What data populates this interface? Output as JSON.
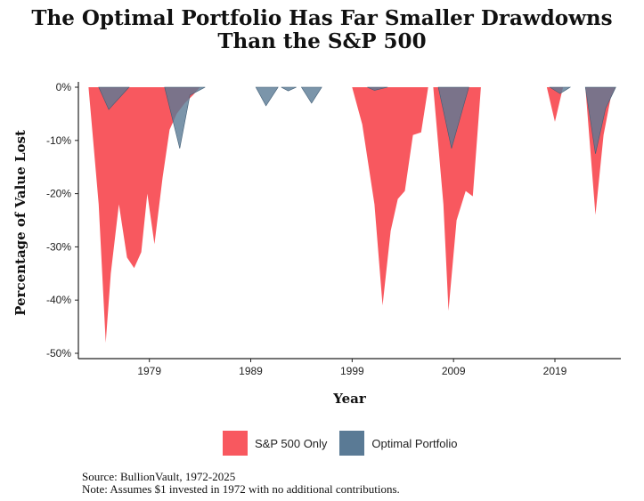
{
  "chart_data": {
    "type": "area",
    "title": "The Optimal Portfolio Has Far Smaller Drawdowns",
    "subtitle": "Than the S&P 500",
    "xlabel": "Year",
    "ylabel": "Percentage of Value Lost",
    "xlim": [
      1972,
      2025.5
    ],
    "ylim": [
      -51,
      0
    ],
    "x_ticks": [
      1979,
      1989,
      1999,
      2009,
      2019
    ],
    "y_ticks": [
      0,
      -10,
      -20,
      -30,
      -40,
      -50
    ],
    "y_tick_labels": [
      "0%",
      "-10%",
      "-20%",
      "-30%",
      "-40%",
      "-50%"
    ],
    "grid": false,
    "legend_position": "bottom",
    "colors": {
      "sp500": "#f8585f",
      "optimal": "#5a7a95",
      "overlap": "#5b4a62"
    },
    "series": [
      {
        "name": "S&P 500 Only",
        "x": [
          1973.0,
          1974.0,
          1974.7,
          1975.2,
          1976.0,
          1976.8,
          1977.5,
          1978.2,
          1978.8,
          1979.5,
          1980.3,
          1981.0,
          1981.7,
          1982.5,
          1983.3,
          1984.0,
          1984.8,
          1985.3
        ],
        "y": [
          0,
          -22,
          -48,
          -35,
          -22,
          -32,
          -34,
          -31,
          -20,
          -29.5,
          -17,
          -8,
          -5,
          -3,
          -1.5,
          0,
          0,
          0
        ]
      },
      {
        "name": "S&P 500 Only",
        "x": [
          1999.0,
          2000.0,
          2001.2,
          2002.0,
          2002.8,
          2003.5,
          2004.2,
          2005.0,
          2005.8,
          2006.5,
          2007.0,
          2008.0,
          2008.5,
          2009.3,
          2010.2,
          2010.9,
          2011.7,
          2012.5,
          2013.3,
          2013.5
        ],
        "y": [
          0,
          -7,
          -22,
          -41,
          -27,
          -21,
          -19.5,
          -9,
          -8.5,
          0,
          0,
          -22,
          -42,
          -25,
          -19.5,
          -20.5,
          0,
          0,
          0,
          0
        ]
      },
      {
        "name": "S&P 500 Only",
        "x": [
          2018.2,
          2019.0,
          2019.8,
          2020.2
        ],
        "y": [
          0,
          -6.5,
          0,
          0
        ]
      },
      {
        "name": "S&P 500 Only",
        "x": [
          2022.0,
          2023.0,
          2023.8,
          2024.5,
          2025.0
        ],
        "y": [
          0,
          -24,
          -9,
          -2,
          0
        ]
      },
      {
        "name": "Optimal Portfolio",
        "x": [
          1974.0,
          1975.0,
          1977.0
        ],
        "y": [
          0,
          -4.2,
          0
        ]
      },
      {
        "name": "Optimal Portfolio",
        "x": [
          1980.5,
          1982.0,
          1983.0,
          1984.5
        ],
        "y": [
          0,
          -11.5,
          -1.5,
          0
        ]
      },
      {
        "name": "Optimal Portfolio",
        "x": [
          1989.5,
          1990.5,
          1991.7
        ],
        "y": [
          0,
          -3.5,
          0
        ]
      },
      {
        "name": "Optimal Portfolio",
        "x": [
          1992.0,
          1992.7,
          1993.5
        ],
        "y": [
          0,
          -0.7,
          0
        ]
      },
      {
        "name": "Optimal Portfolio",
        "x": [
          1994.0,
          1995.0,
          1996.0
        ],
        "y": [
          0,
          -3,
          0
        ]
      },
      {
        "name": "Optimal Portfolio",
        "x": [
          2000.5,
          2001.2,
          2002.5
        ],
        "y": [
          0,
          -0.6,
          0
        ]
      },
      {
        "name": "Optimal Portfolio",
        "x": [
          2007.5,
          2008.8,
          2010.5
        ],
        "y": [
          0,
          -11.5,
          0
        ]
      },
      {
        "name": "Optimal Portfolio",
        "x": [
          2018.5,
          2019.5,
          2020.5
        ],
        "y": [
          0,
          -1.2,
          0
        ]
      },
      {
        "name": "Optimal Portfolio",
        "x": [
          2022.0,
          2023.0,
          2024.0,
          2025.0
        ],
        "y": [
          0,
          -12.5,
          -4,
          0
        ]
      }
    ]
  },
  "legend": {
    "items": [
      {
        "label": "S&P 500 Only",
        "color": "#f8585f"
      },
      {
        "label": "Optimal Portfolio",
        "color": "#5a7a95"
      }
    ]
  },
  "footer": {
    "source": "Source: BullionVault, 1972-2025",
    "note": "Note: Assumes $1 invested in 1972 with no additional contributions."
  }
}
